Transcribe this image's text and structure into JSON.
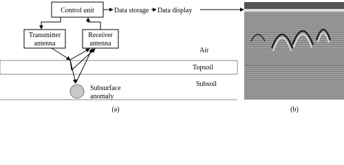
{
  "boxes": [
    {
      "label": [
        "Control unit"
      ]
    },
    {
      "label": [
        "Transmitter",
        "antenna"
      ]
    },
    {
      "label": [
        "Receiver",
        "antenna"
      ]
    }
  ],
  "labels": [
    "Data storage",
    "Data display"
  ],
  "layers": [
    "Air",
    "Topsoil",
    "Subsoil"
  ],
  "anomaly": [
    "Subsurface",
    "anomaly"
  ],
  "captions": [
    "(a)",
    "(b)"
  ]
}
